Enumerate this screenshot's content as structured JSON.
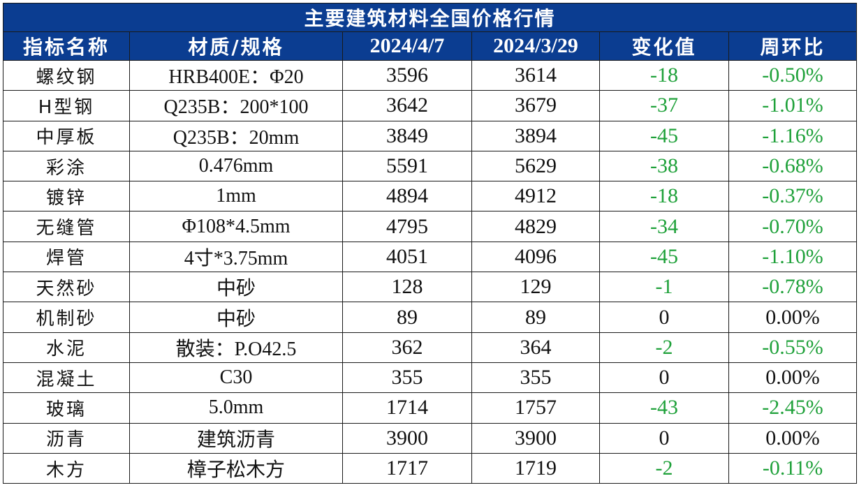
{
  "title": "主要建筑材料全国价格行情",
  "headers": {
    "name": "指标名称",
    "spec": "材质/规格",
    "date_current": "2024/4/7",
    "date_previous": "2024/3/29",
    "change": "变化值",
    "ratio": "周环比"
  },
  "colors": {
    "header_bg": "#0b3d91",
    "header_text": "#ffffff",
    "negative": "#1fa13a",
    "neutral": "#111111"
  },
  "rows": [
    {
      "name": "螺纹钢",
      "spec": "HRB400E：Φ20",
      "current": "3596",
      "previous": "3614",
      "change": "-18",
      "ratio": "-0.50%"
    },
    {
      "name": "H型钢",
      "spec": "Q235B：200*100",
      "current": "3642",
      "previous": "3679",
      "change": "-37",
      "ratio": "-1.01%"
    },
    {
      "name": "中厚板",
      "spec": "Q235B：20mm",
      "current": "3849",
      "previous": "3894",
      "change": "-45",
      "ratio": "-1.16%"
    },
    {
      "name": "彩涂",
      "spec": "0.476mm",
      "current": "5591",
      "previous": "5629",
      "change": "-38",
      "ratio": "-0.68%"
    },
    {
      "name": "镀锌",
      "spec": "1mm",
      "current": "4894",
      "previous": "4912",
      "change": "-18",
      "ratio": "-0.37%"
    },
    {
      "name": "无缝管",
      "spec": "Φ108*4.5mm",
      "current": "4795",
      "previous": "4829",
      "change": "-34",
      "ratio": "-0.70%"
    },
    {
      "name": "焊管",
      "spec": "4寸*3.75mm",
      "current": "4051",
      "previous": "4096",
      "change": "-45",
      "ratio": "-1.10%"
    },
    {
      "name": "天然砂",
      "spec": "中砂",
      "current": "128",
      "previous": "129",
      "change": "-1",
      "ratio": "-0.78%"
    },
    {
      "name": "机制砂",
      "spec": "中砂",
      "current": "89",
      "previous": "89",
      "change": "0",
      "ratio": "0.00%"
    },
    {
      "name": "水泥",
      "spec": "散装：P.O42.5",
      "current": "362",
      "previous": "364",
      "change": "-2",
      "ratio": "-0.55%"
    },
    {
      "name": "混凝土",
      "spec": "C30",
      "current": "355",
      "previous": "355",
      "change": "0",
      "ratio": "0.00%"
    },
    {
      "name": "玻璃",
      "spec": "5.0mm",
      "current": "1714",
      "previous": "1757",
      "change": "-43",
      "ratio": "-2.45%"
    },
    {
      "name": "沥青",
      "spec": "建筑沥青",
      "current": "3900",
      "previous": "3900",
      "change": "0",
      "ratio": "0.00%"
    },
    {
      "name": "木方",
      "spec": "樟子松木方",
      "current": "1717",
      "previous": "1719",
      "change": "-2",
      "ratio": "-0.11%"
    }
  ]
}
